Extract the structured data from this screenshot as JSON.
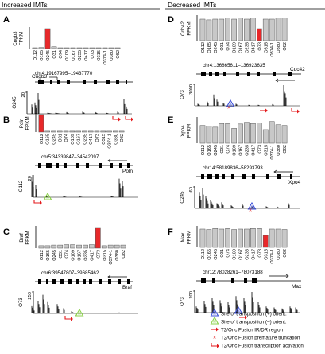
{
  "headers": {
    "left": "Increased IMTs",
    "right": "Decreased IMTs"
  },
  "x_labels": [
    "O112",
    "O165",
    "O245",
    "O31",
    "O74",
    "O109",
    "O167",
    "O235",
    "O417",
    "O73",
    "O315",
    "O374-1",
    "O380",
    "O82"
  ],
  "panels": [
    {
      "letter": "A",
      "gene": "Cngb3",
      "ylabel": "Cngb3\nFPKM",
      "values": [
        0.03,
        0.05,
        1.0,
        0.09,
        0.03,
        0.02,
        0.02,
        0.02,
        0.02,
        0.03,
        0.02,
        0.02,
        0.02,
        0.02
      ],
      "highlight": 2,
      "region": "chr4:19167995–19437770",
      "gene_label": "Cngb3",
      "track_label": "O245",
      "track_max": "20"
    },
    {
      "letter": "B",
      "gene": "Poln",
      "ylabel": "Poln\nFPKM",
      "values": [
        1.0,
        0.05,
        0.05,
        0.05,
        0.05,
        0.05,
        0.05,
        0.05,
        0.05,
        0.05,
        0.05,
        0.05,
        0.05,
        0.05
      ],
      "highlight": 0,
      "region": "chr5:34339847–34542097",
      "gene_label": "Poln",
      "track_label": "O112",
      "track_max": "20"
    },
    {
      "letter": "C",
      "gene": "Braf",
      "ylabel": "Braf\nFPKM",
      "values": [
        0.12,
        0.12,
        0.15,
        0.15,
        0.17,
        0.17,
        0.15,
        0.15,
        0.17,
        1.0,
        0.12,
        0.15,
        0.15,
        0.15
      ],
      "highlight": 9,
      "region": "chr6:39547807–39685462",
      "gene_label": "Braf",
      "track_label": "O73",
      "track_max": "250"
    },
    {
      "letter": "D",
      "gene": "Cdc42",
      "ylabel": "Cdc42\nFPKM",
      "values": [
        0.9,
        0.87,
        0.9,
        0.9,
        0.95,
        0.9,
        0.95,
        0.9,
        0.95,
        0.5,
        0.9,
        0.9,
        0.95,
        0.95
      ],
      "highlight": 9,
      "region": "chr4:136865611–136923635",
      "gene_label": "Cdc42",
      "track_label": "O73",
      "track_max": "3000"
    },
    {
      "letter": "E",
      "gene": "Xpo4",
      "ylabel": "Xpo4\nFPKM",
      "values": [
        0.72,
        0.7,
        0.65,
        0.8,
        0.8,
        0.6,
        0.78,
        0.85,
        0.8,
        0.82,
        0.55,
        0.88,
        0.75,
        0.72
      ],
      "highlight": -1,
      "region": "chr14:58189836–58293793",
      "gene_label": "Xpo4",
      "track_label": "O245",
      "track_max": "60"
    },
    {
      "letter": "F",
      "gene": "Max",
      "ylabel": "Max\nFPKM",
      "values": [
        0.92,
        0.9,
        0.95,
        0.92,
        0.95,
        0.9,
        0.92,
        0.92,
        0.95,
        0.95,
        0.6,
        0.92,
        0.92,
        0.9
      ],
      "highlight": 10,
      "region": "chr12:78028261–78073188",
      "gene_label": "Max",
      "track_label": "O73",
      "track_max": "200"
    }
  ],
  "legend": [
    {
      "text": "Site of transposition (+) orient.",
      "symbol": "tri-blue"
    },
    {
      "text": "Site of transposition (–) orient.",
      "symbol": "tri-green"
    },
    {
      "text": "T2/Onc Fusion IR/DR region",
      "symbol": "arrow-red"
    },
    {
      "text": "T2/Onc Fusion premature truncation",
      "symbol": "x-red"
    },
    {
      "text": "T2/Onc Fusion transcription activation",
      "symbol": "bent-red"
    }
  ],
  "colors": {
    "grey_bar": "#c8c8c8",
    "highlight_bar": "#e8282a",
    "line": "#000000",
    "red": "#e31a1c",
    "blue_tri": "#3b4fd8",
    "green_tri": "#8bd14a"
  }
}
